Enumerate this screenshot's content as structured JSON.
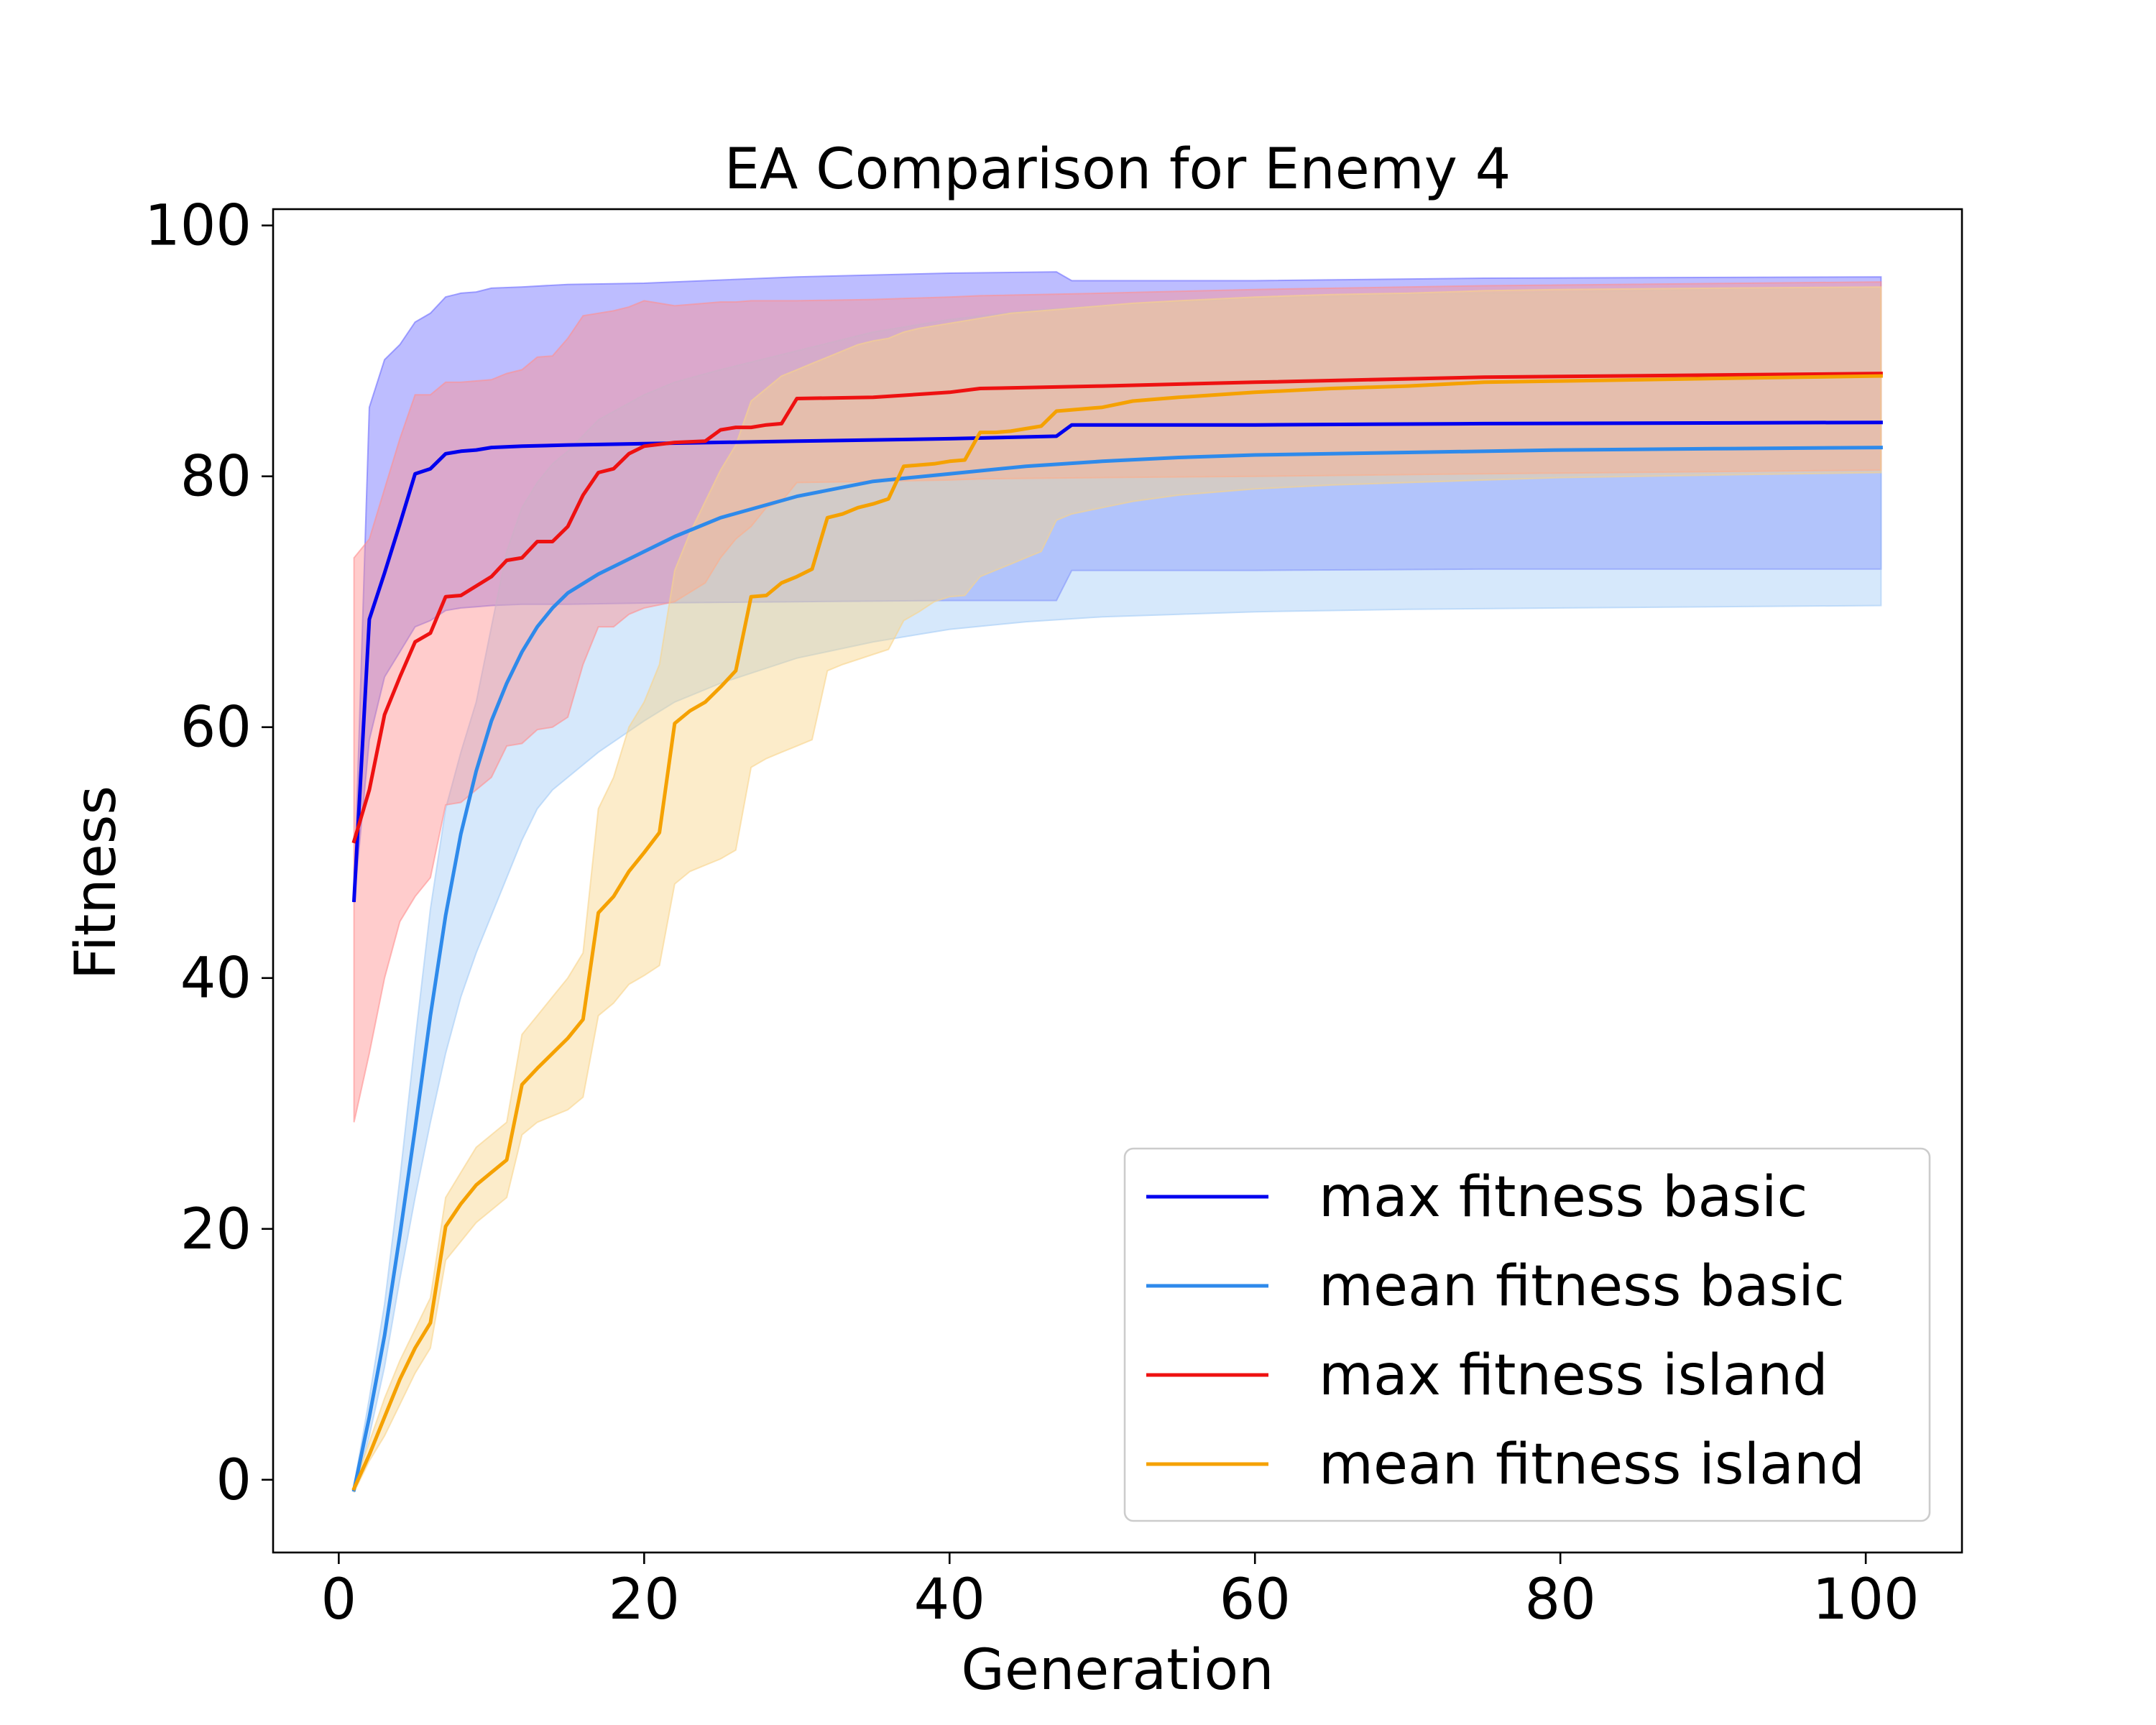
{
  "chart_data": {
    "type": "line",
    "title": "EA Comparison for Enemy 4",
    "xlabel": "Generation",
    "ylabel": "Fitness",
    "xlim": [
      -4.3,
      106.3
    ],
    "ylim": [
      -5.8,
      101.3
    ],
    "xticks": [
      0,
      20,
      40,
      60,
      80,
      100
    ],
    "yticks": [
      0,
      20,
      40,
      60,
      80,
      100
    ],
    "grid": false,
    "legend_position": "lower-right",
    "series": [
      {
        "name": "max fitness basic",
        "color": "#0000ee",
        "band_color": "#6c6cff",
        "x": [
          1,
          2,
          3,
          4,
          5,
          6,
          7,
          8,
          9,
          10,
          12,
          15,
          20,
          30,
          40,
          47,
          48,
          60,
          75,
          101
        ],
        "y": [
          46.2,
          68.6,
          72.3,
          76.2,
          80.2,
          80.6,
          81.8,
          82.0,
          82.1,
          82.3,
          82.4,
          82.5,
          82.6,
          82.8,
          83.0,
          83.2,
          84.1,
          84.1,
          84.2,
          84.3
        ],
        "upper": [
          46.5,
          85.5,
          89.3,
          90.5,
          92.3,
          93.0,
          94.3,
          94.6,
          94.7,
          95.0,
          95.1,
          95.3,
          95.4,
          95.9,
          96.2,
          96.3,
          95.6,
          95.6,
          95.8,
          95.9
        ],
        "lower": [
          46.0,
          59.0,
          64.0,
          66.0,
          68.0,
          68.5,
          69.3,
          69.5,
          69.6,
          69.7,
          69.8,
          69.8,
          69.9,
          70.0,
          70.1,
          70.1,
          72.5,
          72.5,
          72.6,
          72.6
        ]
      },
      {
        "name": "mean fitness basic",
        "color": "#2e8aeb",
        "band_color": "#a4ccf7",
        "x": [
          1,
          2,
          3,
          4,
          5,
          6,
          7,
          8,
          9,
          10,
          11,
          12,
          13,
          14,
          15,
          17,
          20,
          22,
          25,
          30,
          35,
          40,
          45,
          50,
          55,
          60,
          70,
          80,
          90,
          101
        ],
        "y": [
          -0.8,
          5.0,
          11.5,
          19.5,
          28.0,
          37.0,
          45.0,
          51.5,
          56.5,
          60.5,
          63.5,
          66.0,
          68.0,
          69.5,
          70.7,
          72.2,
          74.0,
          75.2,
          76.7,
          78.4,
          79.6,
          80.2,
          80.8,
          81.2,
          81.5,
          81.7,
          81.9,
          82.1,
          82.2,
          82.3
        ],
        "upper": [
          -0.5,
          6.5,
          14.0,
          24.0,
          35.0,
          45.5,
          53.5,
          58.0,
          62.0,
          68.0,
          74.0,
          77.5,
          79.5,
          81.0,
          82.0,
          84.5,
          86.5,
          87.5,
          88.5,
          90.0,
          91.5,
          92.5,
          93.2,
          93.6,
          93.9,
          94.2,
          94.5,
          94.7,
          94.9,
          95.0
        ],
        "lower": [
          -1.0,
          3.5,
          9.0,
          16.0,
          22.5,
          28.5,
          34.0,
          38.5,
          42.0,
          45.0,
          48.0,
          51.0,
          53.5,
          55.0,
          56.0,
          58.0,
          60.5,
          62.0,
          63.5,
          65.5,
          66.8,
          67.8,
          68.4,
          68.8,
          69.0,
          69.2,
          69.4,
          69.5,
          69.6,
          69.7
        ]
      },
      {
        "name": "max fitness island",
        "color": "#ee1111",
        "band_color": "#ff8f8f",
        "x": [
          1,
          2,
          3,
          4,
          5,
          6,
          7,
          8,
          10,
          11,
          12,
          13,
          14,
          15,
          16,
          17,
          18,
          19,
          20,
          22,
          24,
          25,
          26,
          27,
          28,
          29,
          30,
          35,
          40,
          42,
          50,
          60,
          75,
          101
        ],
        "y": [
          50.9,
          55.0,
          61.0,
          64.0,
          66.8,
          67.5,
          70.4,
          70.5,
          72.0,
          73.3,
          73.5,
          74.8,
          74.8,
          76.0,
          78.5,
          80.3,
          80.6,
          81.8,
          82.4,
          82.7,
          82.8,
          83.7,
          83.9,
          83.9,
          84.1,
          84.2,
          86.2,
          86.3,
          86.7,
          87.0,
          87.2,
          87.5,
          87.9,
          88.2
        ],
        "upper": [
          73.5,
          75.0,
          79.0,
          83.0,
          86.5,
          86.5,
          87.5,
          87.5,
          87.7,
          88.2,
          88.5,
          89.5,
          89.6,
          91.0,
          92.8,
          93.0,
          93.2,
          93.5,
          94.0,
          93.6,
          93.8,
          93.9,
          93.9,
          94.0,
          94.0,
          94.0,
          94.0,
          94.1,
          94.3,
          94.4,
          94.6,
          94.9,
          95.2,
          95.5
        ],
        "lower": [
          28.5,
          34.0,
          40.0,
          44.5,
          46.5,
          48.0,
          53.8,
          54.0,
          56.0,
          58.5,
          58.7,
          59.8,
          60.0,
          60.8,
          65.0,
          68.0,
          68.0,
          69.0,
          69.5,
          70.0,
          71.5,
          73.5,
          75.0,
          76.0,
          77.5,
          78.0,
          79.5,
          79.6,
          79.7,
          79.8,
          79.9,
          80.0,
          80.2,
          80.5
        ]
      },
      {
        "name": "mean fitness island",
        "color": "#f5a100",
        "band_color": "#f9d48a",
        "x": [
          1,
          2,
          3,
          4,
          5,
          6,
          7,
          8,
          9,
          10,
          11,
          12,
          13,
          14,
          15,
          16,
          17,
          18,
          19,
          20,
          21,
          22,
          23,
          24,
          25,
          26,
          27,
          28,
          29,
          30,
          31,
          32,
          33,
          34,
          35,
          36,
          37,
          38,
          39,
          40,
          41,
          42,
          43,
          44,
          45,
          46,
          47,
          48,
          50,
          52,
          55,
          60,
          65,
          70,
          75,
          80,
          90,
          101
        ],
        "y": [
          -0.7,
          2.0,
          5.0,
          8.0,
          10.5,
          12.5,
          20.2,
          22.0,
          23.5,
          24.5,
          25.5,
          31.5,
          32.8,
          34.0,
          35.2,
          36.7,
          45.2,
          46.5,
          48.5,
          50.0,
          51.6,
          60.3,
          61.3,
          62.0,
          63.2,
          64.5,
          70.4,
          70.5,
          71.5,
          72.0,
          72.6,
          76.7,
          77.0,
          77.5,
          77.8,
          78.2,
          80.8,
          80.9,
          81.0,
          81.2,
          81.3,
          83.5,
          83.5,
          83.6,
          83.8,
          84.0,
          85.2,
          85.3,
          85.5,
          86.0,
          86.3,
          86.7,
          87.0,
          87.2,
          87.5,
          87.6,
          87.8,
          88.0
        ],
        "upper": [
          -0.5,
          3.0,
          6.5,
          9.5,
          12.0,
          14.5,
          22.5,
          24.5,
          26.5,
          27.5,
          28.5,
          35.5,
          37.0,
          38.5,
          40.0,
          42.0,
          53.5,
          56.0,
          60.0,
          62.0,
          65.0,
          72.5,
          75.5,
          78.0,
          80.5,
          82.5,
          86.0,
          87.0,
          88.0,
          88.5,
          89.0,
          89.5,
          90.0,
          90.5,
          90.8,
          91.0,
          91.5,
          91.8,
          92.0,
          92.2,
          92.4,
          92.6,
          92.8,
          93.0,
          93.1,
          93.2,
          93.3,
          93.4,
          93.6,
          93.8,
          94.0,
          94.3,
          94.5,
          94.6,
          94.8,
          94.9,
          95.0,
          95.1
        ],
        "lower": [
          -1.0,
          1.5,
          3.5,
          6.0,
          8.5,
          10.5,
          17.5,
          19.0,
          20.5,
          21.5,
          22.5,
          27.5,
          28.5,
          29.0,
          29.5,
          30.5,
          37.0,
          38.0,
          39.5,
          40.2,
          41.0,
          47.5,
          48.5,
          49.0,
          49.5,
          50.2,
          56.8,
          57.5,
          58.0,
          58.5,
          59.0,
          64.5,
          65.0,
          65.4,
          65.8,
          66.2,
          68.5,
          69.2,
          70.0,
          70.4,
          70.5,
          72.0,
          72.5,
          73.0,
          73.5,
          74.0,
          76.5,
          77.0,
          77.5,
          78.0,
          78.5,
          79.0,
          79.3,
          79.5,
          79.7,
          79.9,
          80.1,
          80.3
        ]
      }
    ]
  }
}
